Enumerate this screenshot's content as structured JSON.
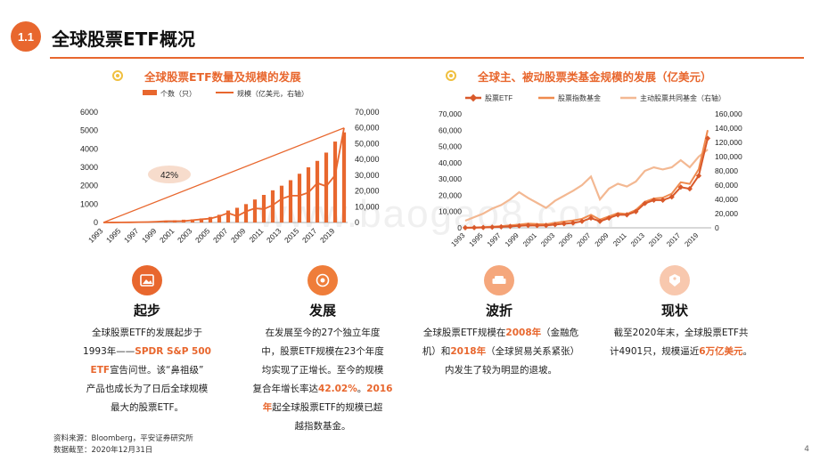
{
  "header": {
    "section_number": "1.1",
    "title": "全球股票ETF概况"
  },
  "watermark": "www.baogao8.com",
  "chart_data": [
    {
      "type": "bar",
      "title": "全球股票ETF数量及规模的发展",
      "legend": {
        "placement": "top",
        "bar_label": "个数（只）",
        "line_label": "规模（亿美元，右轴）"
      },
      "x_tick_labels": [
        "1993",
        "1995",
        "1997",
        "1999",
        "2001",
        "2003",
        "2005",
        "2007",
        "2009",
        "2011",
        "2013",
        "2015",
        "2017",
        "2019"
      ],
      "years": [
        1993,
        1994,
        1995,
        1996,
        1997,
        1998,
        1999,
        2000,
        2001,
        2002,
        2003,
        2004,
        2005,
        2006,
        2007,
        2008,
        2009,
        2010,
        2011,
        2012,
        2013,
        2014,
        2015,
        2016,
        2017,
        2018,
        2019,
        2020
      ],
      "series": [
        {
          "name": "个数（只）",
          "type": "bar",
          "axis": "left",
          "color": "#e8672e",
          "values": [
            1,
            2,
            2,
            10,
            20,
            30,
            40,
            80,
            120,
            150,
            170,
            220,
            300,
            420,
            650,
            800,
            1000,
            1250,
            1500,
            1750,
            2000,
            2300,
            2650,
            3000,
            3350,
            3800,
            4400,
            4901
          ]
        },
        {
          "name": "规模（亿美元，右轴）",
          "type": "line",
          "axis": "right",
          "color": "#e8672e",
          "values": [
            10,
            30,
            50,
            100,
            200,
            300,
            500,
            800,
            800,
            900,
            1500,
            2000,
            2500,
            4000,
            6000,
            4000,
            7000,
            9000,
            8500,
            11000,
            15000,
            17000,
            17000,
            19000,
            25000,
            23000,
            30000,
            60000
          ]
        }
      ],
      "ylim_left": [
        0,
        6000
      ],
      "left_ticks": [
        "6000",
        "5000",
        "4000",
        "3000",
        "2000",
        "1000",
        "0"
      ],
      "ylim_right": [
        0,
        70000
      ],
      "right_ticks": [
        "70,000",
        "60,000",
        "50,000",
        "40,000",
        "30,000",
        "20,000",
        "10,000",
        "0"
      ],
      "annotation": "42%",
      "grid": false
    },
    {
      "type": "line",
      "title": "全球主、被动股票类基金规模的发展（亿美元）",
      "legend": {
        "placement": "top"
      },
      "x_tick_labels": [
        "1993",
        "1995",
        "1997",
        "1999",
        "2001",
        "2003",
        "2005",
        "2007",
        "2009",
        "2011",
        "2013",
        "2015",
        "2017",
        "2019"
      ],
      "ylim_left": [
        0,
        70000
      ],
      "left_ticks": [
        "70,000",
        "60,000",
        "50,000",
        "40,000",
        "30,000",
        "20,000",
        "10,000",
        "0"
      ],
      "ylim_right": [
        0,
        160000
      ],
      "right_ticks": [
        "160,000",
        "140,000",
        "120,000",
        "100,000",
        "80,000",
        "60,000",
        "40,000",
        "20,000",
        "0"
      ],
      "x": [
        1993,
        1994,
        1995,
        1996,
        1997,
        1998,
        1999,
        2000,
        2001,
        2002,
        2003,
        2004,
        2005,
        2006,
        2007,
        2008,
        2009,
        2010,
        2011,
        2012,
        2013,
        2014,
        2015,
        2016,
        2017,
        2018,
        2019,
        2020
      ],
      "series": [
        {
          "name": "股票ETF",
          "axis": "left",
          "color": "#d9592a",
          "marker": "diamond",
          "values": [
            50,
            100,
            200,
            400,
            600,
            900,
            1200,
            1500,
            1400,
            1500,
            2000,
            2500,
            3000,
            4000,
            6000,
            4000,
            6000,
            8000,
            8000,
            10000,
            15000,
            17000,
            17000,
            19000,
            25000,
            24000,
            32000,
            55000
          ]
        },
        {
          "name": "股票指数基金",
          "axis": "left",
          "color": "#ef8a4e",
          "values": [
            100,
            200,
            400,
            700,
            1000,
            1500,
            2000,
            2600,
            2300,
            2200,
            3000,
            3800,
            4500,
            5500,
            8000,
            5000,
            7000,
            9000,
            8500,
            11000,
            16000,
            18000,
            18500,
            21000,
            28000,
            27000,
            36000,
            60000
          ]
        },
        {
          "name": "主动股票共同基金（右轴）",
          "axis": "right",
          "color": "#f3b892",
          "values": [
            10000,
            15000,
            20000,
            27000,
            32000,
            40000,
            50000,
            42000,
            35000,
            28000,
            38000,
            45000,
            52000,
            60000,
            72000,
            40000,
            55000,
            62000,
            58000,
            65000,
            80000,
            85000,
            82000,
            85000,
            95000,
            85000,
            100000,
            110000
          ]
        }
      ],
      "grid": false
    }
  ],
  "stages": [
    {
      "title": "起步",
      "icon": "image-icon",
      "color": "#e8672e",
      "parts": [
        {
          "text": "全球股票ETF的发展起步于"
        },
        {
          "text": "1993年——"
        },
        {
          "text": "SPDR S&P 500",
          "hl": true
        },
        {
          "text": "ETF",
          "hl": true
        },
        {
          "text": "宣告问世。该“鼻祖级”"
        },
        {
          "text": "产品也成长为了日后全球规模"
        },
        {
          "text": "最大的股票ETF。"
        }
      ]
    },
    {
      "title": "发展",
      "icon": "target-icon",
      "color": "#ef7d3a",
      "parts": [
        {
          "text": "在发展至今的27个独立年度"
        },
        {
          "text": "中，股票ETF规模在23个年度"
        },
        {
          "text": "均实现了正增长。至今的规模"
        },
        {
          "text": "复合年增长率达"
        },
        {
          "text": "42.02%",
          "hl": true
        },
        {
          "text": "。"
        },
        {
          "text": "2016",
          "hl": true
        },
        {
          "text": "年",
          "hl": true
        },
        {
          "text": "起全球股票ETF的规模已超"
        },
        {
          "text": "越指数基金。"
        }
      ]
    },
    {
      "title": "波折",
      "icon": "sofa-icon",
      "color": "#f5a77c",
      "parts": [
        {
          "text": "全球股票ETF规模在"
        },
        {
          "text": "2008年",
          "hl": true
        },
        {
          "text": "（金融危"
        },
        {
          "text": "机）和"
        },
        {
          "text": "2018年",
          "hl": true
        },
        {
          "text": "（全球贸易关系紧张）"
        },
        {
          "text": "内发生了较为明显的退坡。"
        }
      ]
    },
    {
      "title": "现状",
      "icon": "tag-icon",
      "color": "#f8c8ae",
      "parts": [
        {
          "text": "截至2020年末，全球股票ETF共"
        },
        {
          "text": "计4901只，规模逼近"
        },
        {
          "text": "6万亿美元",
          "hl": true
        },
        {
          "text": "。"
        }
      ]
    }
  ],
  "footer": {
    "source": "资料来源：Bloomberg，平安证券研究所",
    "cutoff": "数据截至：2020年12月31日"
  },
  "page_number": "4"
}
